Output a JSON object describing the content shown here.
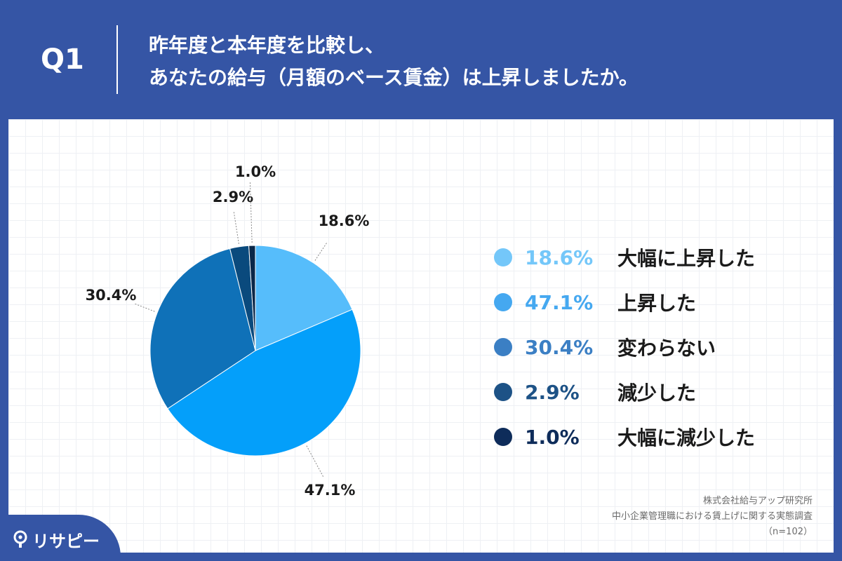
{
  "header": {
    "q_label": "Q1",
    "title_line1": "昨年度と本年度を比較し、",
    "title_line2": "あなたの給与（月額のベース賃金）は上昇しましたか。"
  },
  "chart_data": {
    "type": "pie",
    "categories": [
      "大幅に上昇した",
      "上昇した",
      "変わらない",
      "減少した",
      "大幅に減少した"
    ],
    "values": [
      18.6,
      47.1,
      30.4,
      2.9,
      1.0
    ],
    "labels": [
      "18.6%",
      "47.1%",
      "30.4%",
      "2.9%",
      "1.0%"
    ],
    "colors": [
      "#56bdfb",
      "#049ffa",
      "#0f71b8",
      "#0a4a7d",
      "#0a2748"
    ],
    "legend_colors": [
      "#74c7f9",
      "#45a8f0",
      "#3b7fc4",
      "#1d5286",
      "#0e2c5a"
    ],
    "legend_position": "right"
  },
  "source": {
    "line1": "株式会社給与アップ研究所",
    "line2": "中小企業管理職における賃上げに関する実態調査",
    "line3": "（n=102）"
  },
  "logo": {
    "text": "リサピー",
    "icon": "lightbulb-icon"
  }
}
